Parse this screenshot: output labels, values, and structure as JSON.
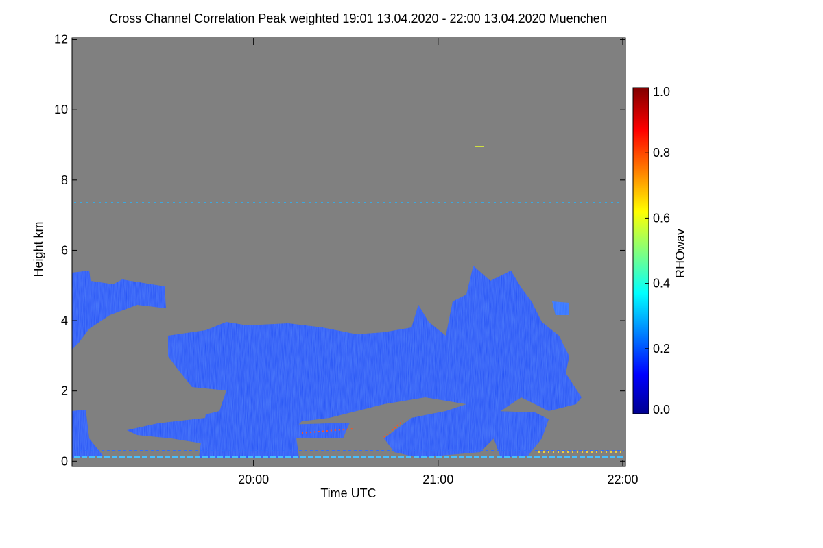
{
  "chart_data": {
    "type": "heatmap",
    "title": "Cross Channel Correlation Peak weighted   19:01 13.04.2020 - 22:00 13.04.2020 Muenchen",
    "xlabel": "Time UTC",
    "ylabel": "Height km",
    "xlim": [
      19.0167,
      22.015
    ],
    "xticks": [
      {
        "value": 20,
        "label": "20:00"
      },
      {
        "value": 21,
        "label": "21:00"
      },
      {
        "value": 22,
        "label": "22:00"
      }
    ],
    "ylim": [
      -0.15,
      12.05
    ],
    "yticks": [
      0,
      2,
      4,
      6,
      8,
      10,
      12
    ],
    "colorbar": {
      "label": "RHOwav",
      "lim": [
        0,
        1
      ],
      "ticks": [
        {
          "value": 0,
          "label": "0.0"
        },
        {
          "value": 0.2,
          "label": "0.2"
        },
        {
          "value": 0.4,
          "label": "0.4"
        },
        {
          "value": 0.6,
          "label": "0.6"
        },
        {
          "value": 0.8,
          "label": "0.8"
        },
        {
          "value": 1,
          "label": "1.0"
        }
      ]
    },
    "background_color": "#808080"
  }
}
